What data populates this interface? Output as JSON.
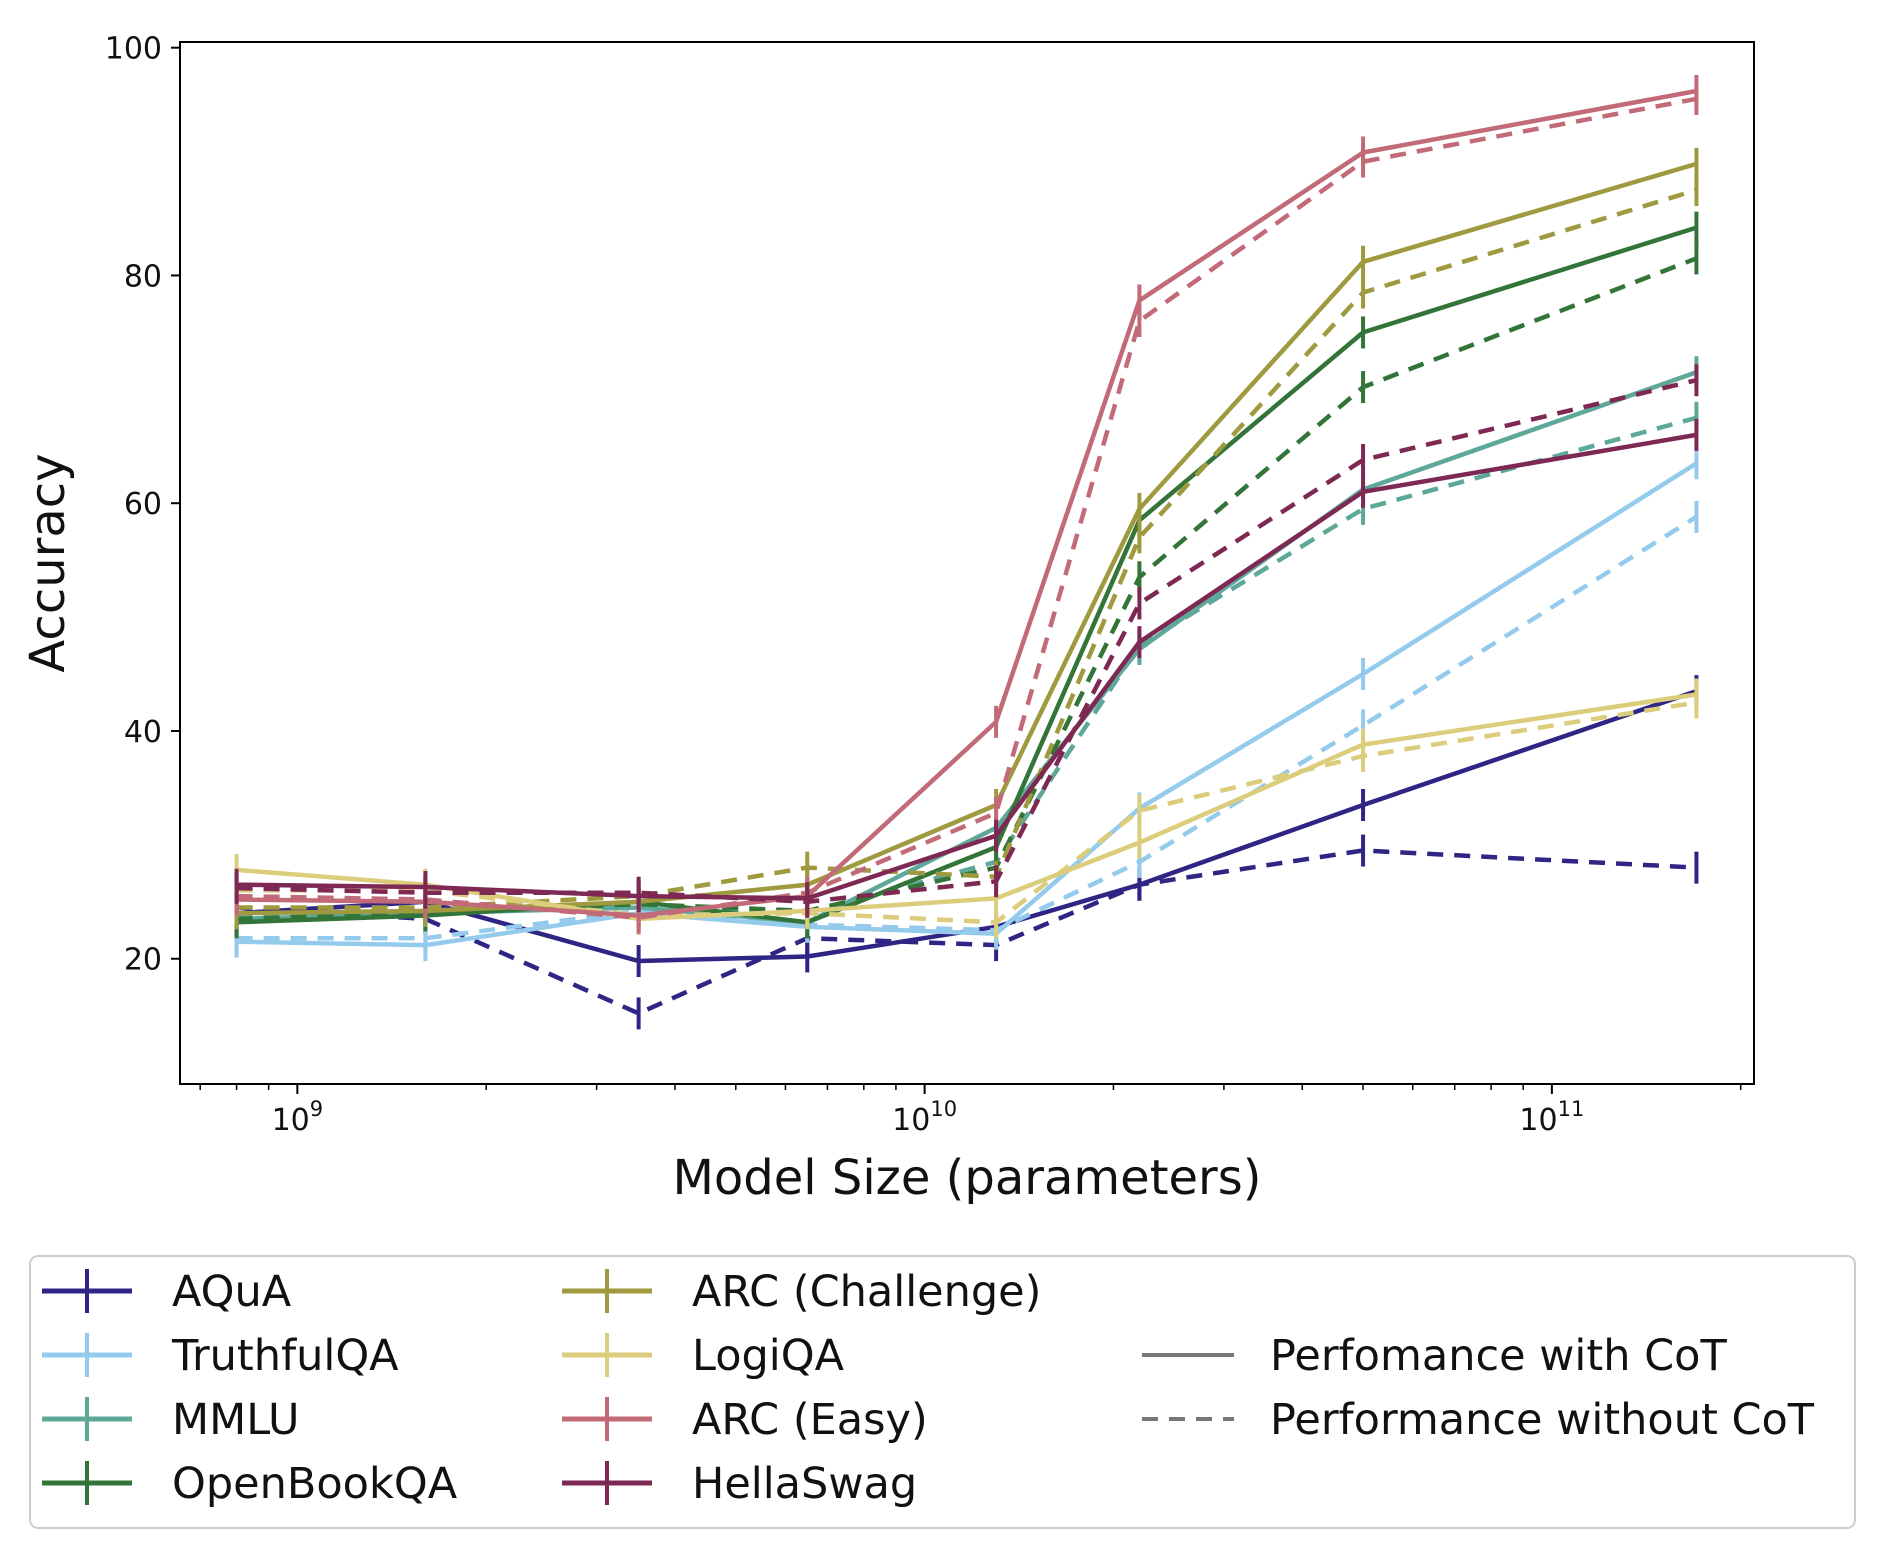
{
  "chart_data": {
    "type": "line",
    "xlabel": "Model Size (parameters)",
    "ylabel": "Accuracy",
    "xscale": "log",
    "xlim": [
      650000000.0,
      210000000000.0
    ],
    "ylim": [
      9,
      100.5
    ],
    "grid": false,
    "legend_position": "below",
    "x": [
      800000000.0,
      1600000000.0,
      3500000000.0,
      6500000000.0,
      13000000000.0,
      22000000000.0,
      50000000000.0,
      170000000000.0
    ],
    "x_ticks": [
      {
        "value": 1000000000.0,
        "base": "10",
        "exp": "9"
      },
      {
        "value": 10000000000.0,
        "base": "10",
        "exp": "10"
      },
      {
        "value": 100000000000.0,
        "base": "10",
        "exp": "11"
      }
    ],
    "y_ticks": [
      20,
      40,
      60,
      80,
      100
    ],
    "series": [
      {
        "name": "AQuA",
        "color": "#2e2585",
        "with_cot": [
          24.0,
          25.0,
          19.8,
          20.2,
          22.8,
          26.5,
          33.5,
          43.5
        ],
        "without_cot": [
          24.5,
          23.5,
          15.2,
          21.8,
          21.2,
          26.5,
          29.5,
          28.0
        ]
      },
      {
        "name": "TruthfulQA",
        "color": "#94cbec",
        "with_cot": [
          21.5,
          21.2,
          24.0,
          22.8,
          22.2,
          33.2,
          45.0,
          63.5
        ],
        "without_cot": [
          21.8,
          21.8,
          24.2,
          23.0,
          22.5,
          28.5,
          40.5,
          58.8
        ]
      },
      {
        "name": "MMLU",
        "color": "#5da899",
        "with_cot": [
          23.5,
          24.0,
          24.5,
          23.2,
          31.5,
          47.2,
          61.2,
          71.5
        ],
        "without_cot": [
          23.8,
          24.2,
          24.8,
          24.0,
          28.5,
          47.5,
          59.5,
          67.5
        ]
      },
      {
        "name": "OpenBookQA",
        "color": "#337538",
        "with_cot": [
          23.2,
          23.8,
          25.0,
          23.2,
          29.8,
          58.5,
          75.0,
          84.2
        ],
        "without_cot": [
          23.5,
          24.0,
          24.8,
          24.2,
          28.0,
          53.5,
          70.2,
          81.5
        ]
      },
      {
        "name": "ARC (Challenge)",
        "color": "#9f9a3f",
        "with_cot": [
          24.0,
          24.2,
          25.0,
          26.5,
          33.5,
          59.5,
          81.2,
          89.8
        ],
        "without_cot": [
          24.5,
          24.5,
          25.5,
          28.0,
          27.2,
          57.0,
          78.5,
          87.5
        ]
      },
      {
        "name": "LogiQA",
        "color": "#dccd7d",
        "with_cot": [
          27.8,
          26.5,
          23.5,
          24.2,
          25.3,
          30.2,
          38.8,
          43.2
        ],
        "without_cot": [
          26.0,
          26.0,
          23.8,
          24.0,
          23.2,
          33.0,
          37.8,
          42.5
        ]
      },
      {
        "name": "ARC (Easy)",
        "color": "#c26a77",
        "with_cot": [
          25.2,
          25.0,
          23.8,
          25.5,
          40.8,
          77.8,
          90.8,
          96.2
        ],
        "without_cot": [
          25.5,
          25.2,
          23.6,
          25.8,
          32.8,
          76.0,
          90.0,
          95.5
        ]
      },
      {
        "name": "HellaSwag",
        "color": "#7e2954",
        "with_cot": [
          26.5,
          26.3,
          25.5,
          25.3,
          30.8,
          47.8,
          61.0,
          66.0
        ],
        "without_cot": [
          26.2,
          25.8,
          25.8,
          25.0,
          26.8,
          51.2,
          63.8,
          70.8
        ]
      }
    ],
    "line_styles": [
      {
        "style": "solid",
        "label": "Perfomance with CoT"
      },
      {
        "style": "dashed",
        "label": "Performance without CoT"
      }
    ]
  }
}
